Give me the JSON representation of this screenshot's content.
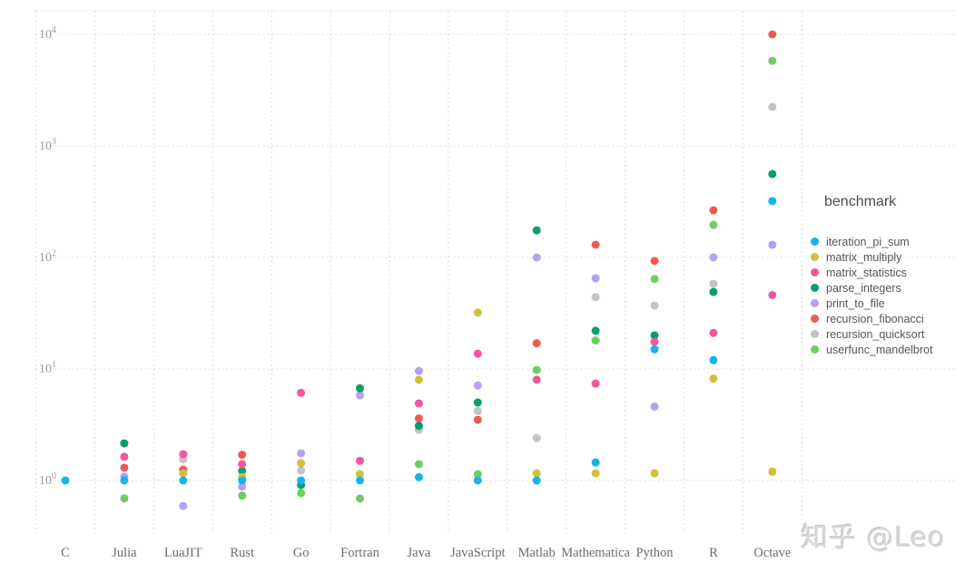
{
  "watermark": {
    "text": "知乎 @Leo"
  },
  "legend": {
    "title": "benchmark"
  },
  "chart_data": {
    "type": "scatter",
    "title": "",
    "xlabel": "",
    "ylabel": "",
    "y_scale": "log10",
    "grid": true,
    "legend_position": "right",
    "y_tick_exponents": [
      0,
      1,
      2,
      3,
      4
    ],
    "ylim": [
      0.45,
      18000
    ],
    "categories": [
      "C",
      "Julia",
      "LuaJIT",
      "Rust",
      "Go",
      "Fortran",
      "Java",
      "JavaScript",
      "Matlab",
      "Mathematica",
      "Python",
      "R",
      "Octave"
    ],
    "series": [
      {
        "name": "iteration_pi_sum",
        "color": "#17b4e9",
        "values": [
          1.0,
          1.0,
          1.0,
          1.0,
          1.0,
          1.0,
          1.07,
          1.0,
          1.0,
          1.45,
          15,
          12,
          320
        ]
      },
      {
        "name": "matrix_multiply",
        "color": "#cdc23d",
        "values": [
          null,
          null,
          1.16,
          1.07,
          1.43,
          1.14,
          8.0,
          32,
          1.16,
          1.16,
          1.16,
          8.2,
          1.2
        ]
      },
      {
        "name": "matrix_statistics",
        "color": "#f1579d",
        "values": [
          null,
          1.63,
          1.72,
          1.4,
          6.1,
          1.5,
          4.9,
          13.7,
          8.0,
          7.4,
          17.5,
          21,
          46
        ]
      },
      {
        "name": "parse_integers",
        "color": "#0b9d6e",
        "values": [
          null,
          2.15,
          null,
          1.22,
          0.91,
          6.7,
          3.1,
          5.0,
          175,
          22,
          20,
          49,
          560
        ]
      },
      {
        "name": "print_to_file",
        "color": "#b6a0f1",
        "values": [
          null,
          1.08,
          0.59,
          0.88,
          1.75,
          5.8,
          9.6,
          7.1,
          100,
          65,
          4.6,
          100,
          130
        ]
      },
      {
        "name": "recursion_fibonacci",
        "color": "#ee5a52",
        "values": [
          null,
          1.3,
          1.25,
          1.7,
          null,
          null,
          3.6,
          3.5,
          17,
          130,
          93,
          265,
          10000
        ]
      },
      {
        "name": "recursion_quicksort",
        "color": "#c3c3c3",
        "values": [
          null,
          null,
          1.55,
          null,
          1.23,
          null,
          2.85,
          4.2,
          2.4,
          44,
          37,
          58,
          2240
        ]
      },
      {
        "name": "userfunc_mandelbrot",
        "color": "#6ecf5e",
        "values": [
          null,
          0.69,
          null,
          0.73,
          0.77,
          0.69,
          1.4,
          1.14,
          9.8,
          18,
          64,
          196,
          5800
        ]
      }
    ]
  }
}
